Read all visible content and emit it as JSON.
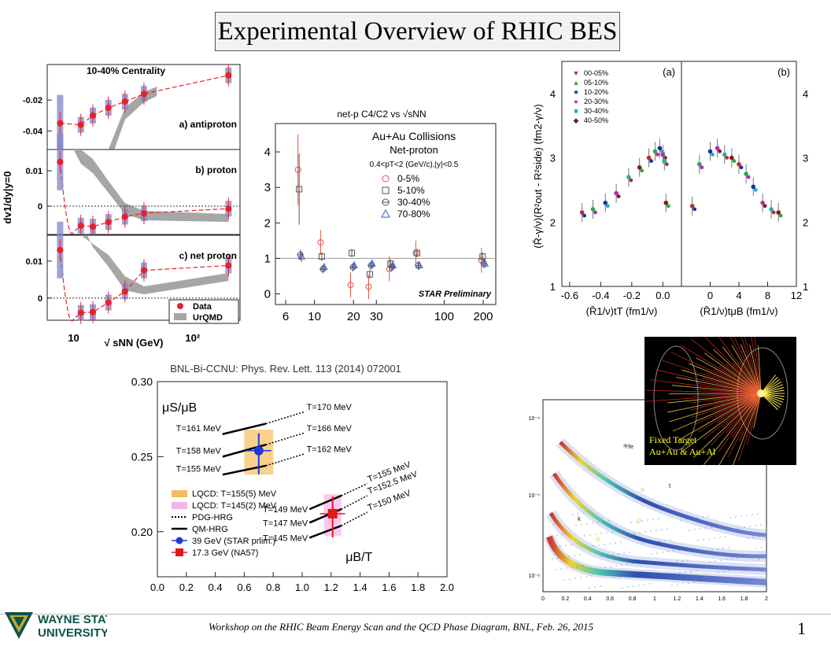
{
  "slide": {
    "title": "Experimental Overview of RHIC BES",
    "footer": "Workshop on the RHIC Beam Energy Scan and the QCD Phase Diagram, BNL, Feb. 26, 2015",
    "page_number": "1",
    "logo": {
      "line1": "WAYNE STATE",
      "line2": "UNIVERSITY",
      "accent": "#c8a82c",
      "primary": "#0c5449"
    }
  },
  "chart_data": [
    {
      "id": "v1-slope",
      "type": "scatter",
      "title": "10-40% Centrality",
      "ylabel": "dv1/dy|y=0",
      "xlabel": "√ sNN (GeV)",
      "xscale": "log",
      "xlim": [
        6,
        250
      ],
      "x_ticks": [
        "10",
        "10²"
      ],
      "legend": [
        {
          "name": "Data",
          "color": "#e8202a"
        },
        {
          "name": "UrQMD",
          "color": "#a6a6a6"
        }
      ],
      "legend_position": "bottom-right",
      "panels": [
        {
          "label": "a) antiproton",
          "ylim": [
            -0.052,
            0.003
          ],
          "yticks": [
            "-0.04",
            "-0.02"
          ],
          "x": [
            7.7,
            11.5,
            14.5,
            19.6,
            27,
            39,
            200
          ],
          "y": [
            -0.035,
            -0.036,
            -0.03,
            -0.025,
            -0.021,
            -0.016,
            -0.004
          ]
        },
        {
          "label": "b) proton",
          "ylim": [
            -0.008,
            0.016
          ],
          "yticks": [
            "0.01",
            "0"
          ],
          "x": [
            7.7,
            11.5,
            14.5,
            19.6,
            27,
            39,
            200
          ],
          "y": [
            0.0125,
            -0.0055,
            -0.0058,
            -0.0045,
            -0.003,
            -0.002,
            -0.0007
          ]
        },
        {
          "label": "c) net proton",
          "ylim": [
            -0.006,
            0.017
          ],
          "yticks": [
            "0.01",
            "0"
          ],
          "x": [
            7.7,
            11.5,
            14.5,
            19.6,
            27,
            39,
            200
          ],
          "y": [
            0.013,
            -0.004,
            -0.0038,
            -0.0012,
            0.0018,
            0.0075,
            0.0088
          ]
        }
      ]
    },
    {
      "id": "c4c2",
      "type": "scatter",
      "title": "net-p C4/C2 vs √sNN",
      "legend_title": [
        "Au+Au Collisions",
        "Net-proton",
        "0.4<pT<2 (GeV/c),|y|<0.5"
      ],
      "watermark": "STAR Preliminary",
      "xscale": "log",
      "xlim": [
        5,
        250
      ],
      "ylim": [
        -0.3,
        4.8
      ],
      "x_ticks": [
        "6",
        "10",
        "20",
        "30",
        "100",
        "200"
      ],
      "y_ticks": [
        "0",
        "1",
        "2",
        "3",
        "4"
      ],
      "series": [
        {
          "name": "0-5%",
          "color": "#e0553f",
          "x": [
            7.7,
            11.5,
            19.6,
            27,
            39,
            62.4,
            200
          ],
          "y": [
            3.5,
            1.45,
            0.25,
            0.2,
            0.7,
            1.15,
            0.95
          ]
        },
        {
          "name": "5-10%",
          "color": "#555555",
          "x": [
            7.7,
            11.5,
            19.6,
            27,
            39,
            62.4,
            200
          ],
          "y": [
            2.95,
            1.05,
            1.15,
            0.55,
            0.85,
            1.15,
            1.05
          ]
        },
        {
          "name": "30-40%",
          "color": "#555555",
          "x": [
            7.7,
            11.5,
            19.6,
            27,
            39,
            62.4,
            200
          ],
          "y": [
            1.1,
            0.7,
            0.75,
            0.8,
            0.75,
            0.8,
            0.85
          ]
        },
        {
          "name": "70-80%",
          "color": "#3a5ad0",
          "x": [
            7.7,
            11.5,
            19.6,
            27,
            39,
            62.4,
            200
          ],
          "y": [
            1.05,
            0.75,
            0.8,
            0.85,
            0.8,
            0.8,
            0.85
          ]
        }
      ]
    },
    {
      "id": "hbt",
      "type": "scatter",
      "panels": [
        {
          "label": "(a)",
          "xlabel": "(R̄1/ν)tT (fm1/ν)",
          "xlim": [
            -0.65,
            0.12
          ],
          "x_ticks": [
            "-0.6",
            "-0.4",
            "-0.2",
            "0.0"
          ]
        },
        {
          "label": "(b)",
          "xlabel": "(R̄1/ν)tμB (fm1/ν)",
          "xlim": [
            -4,
            12
          ],
          "x_ticks": [
            "0",
            "4",
            "8",
            "12"
          ]
        }
      ],
      "ylabel": "(R̄-γ/ν)(R²out - R²side) (fm2-γ/ν)",
      "ylim": [
        1,
        4.5
      ],
      "y_ticks": [
        "1",
        "2",
        "3",
        "4"
      ],
      "legend": [
        {
          "name": "00-05%",
          "color": "#b0302a",
          "marker": "▼"
        },
        {
          "name": "05-10%",
          "color": "#2aa84a",
          "marker": "▲"
        },
        {
          "name": "10-20%",
          "color": "#1d2fa8",
          "marker": "★"
        },
        {
          "name": "20-30%",
          "color": "#b02ab0",
          "marker": "●"
        },
        {
          "name": "30-40%",
          "color": "#20b0b0",
          "marker": "■"
        },
        {
          "name": "40-50%",
          "color": "#7a1a1a",
          "marker": "◆"
        }
      ],
      "points_a": [
        [
          -0.52,
          2.15
        ],
        [
          -0.45,
          2.2
        ],
        [
          -0.37,
          2.3
        ],
        [
          -0.3,
          2.45
        ],
        [
          -0.22,
          2.7
        ],
        [
          -0.15,
          2.85
        ],
        [
          -0.09,
          3.0
        ],
        [
          -0.05,
          3.1
        ],
        [
          -0.02,
          3.15
        ],
        [
          0.0,
          3.05
        ],
        [
          0.01,
          2.95
        ],
        [
          0.02,
          2.3
        ]
      ],
      "points_b": [
        [
          -2.5,
          2.25
        ],
        [
          -1.5,
          2.9
        ],
        [
          0,
          3.1
        ],
        [
          1,
          3.15
        ],
        [
          2,
          3.05
        ],
        [
          3,
          3.0
        ],
        [
          4,
          2.9
        ],
        [
          5,
          2.75
        ],
        [
          6,
          2.55
        ],
        [
          7.3,
          2.3
        ],
        [
          8.5,
          2.2
        ],
        [
          9.5,
          2.15
        ]
      ]
    },
    {
      "id": "mus-mub",
      "type": "line",
      "title": "BNL-Bi-CCNU: Phys. Rev. Lett. 113 (2014) 072001",
      "ylabel": "μS/μB",
      "xlabel": "μB/T",
      "xlim": [
        0,
        2.0
      ],
      "ylim": [
        0.17,
        0.3
      ],
      "x_ticks": [
        "0.0",
        "0.2",
        "0.4",
        "0.6",
        "0.8",
        "1.0",
        "1.2",
        "1.4",
        "1.6",
        "1.8",
        "2.0"
      ],
      "y_ticks": [
        "0.30",
        "0.25",
        "0.20"
      ],
      "left_labels": [
        "T=161 MeV",
        "T=158 MeV",
        "T=155 MeV",
        "T=149 MeV",
        "T=147 MeV",
        "T=145 MeV"
      ],
      "right_labels": [
        "T=170 MeV",
        "T=166 MeV",
        "T=162 MeV",
        "T=155 MeV",
        "T=152.5 MeV",
        "T=150 MeV"
      ],
      "points": [
        {
          "name": "39 GeV (STAR prlim.)",
          "x": 0.7,
          "y": 0.254,
          "color": "#1c3ad8"
        },
        {
          "name": "17.3 GeV (NA57)",
          "x": 1.21,
          "y": 0.212,
          "color": "#e01818"
        }
      ],
      "legend": [
        {
          "name": "LQCD: T=155(5) MeV",
          "color": "#f5bd5c"
        },
        {
          "name": "LQCD: T=145(2) MeV",
          "color": "#f5b4ee"
        },
        {
          "name": "PDG-HRG",
          "color": "#000000"
        },
        {
          "name": "QM-HRG",
          "color": "#000000"
        },
        {
          "name": "39 GeV (STAR prlim.)",
          "color": "#1c3ad8"
        },
        {
          "name": "17.3 GeV (NA57)",
          "color": "#e01818"
        }
      ]
    },
    {
      "id": "pid-bands",
      "type": "heatmap",
      "xlim": [
        0,
        2
      ],
      "x_ticks": [
        "0",
        "0.2",
        "0.4",
        "0.6",
        "0.8",
        "1",
        "1.2",
        "1.4",
        "1.6",
        "1.8",
        "2"
      ],
      "y_ticks": [
        "10⁻⁴",
        "10⁻⁵",
        "10⁻⁶"
      ],
      "band_labels": [
        "³He",
        "t",
        "d",
        "p",
        "π",
        "k"
      ]
    }
  ],
  "inset": {
    "caption_line1": "Fixed Target",
    "caption_line2": "Au+Au & Au+Al",
    "caption_color": "#ffff33"
  }
}
